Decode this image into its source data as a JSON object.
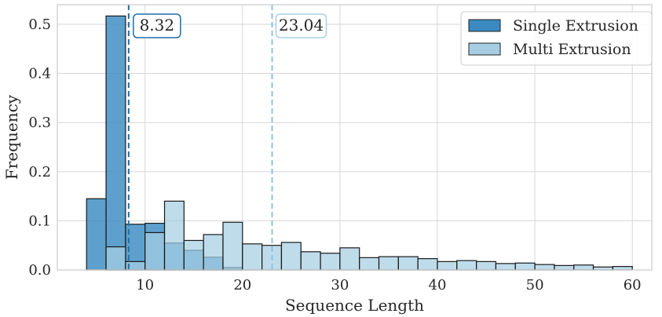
{
  "chart_data": {
    "type": "bar",
    "subtype": "histogram",
    "xlabel": "Sequence Length",
    "ylabel": "Frequency",
    "xlim": [
      1,
      62
    ],
    "ylim": [
      0,
      0.54
    ],
    "xticks": [
      10,
      20,
      30,
      40,
      50,
      60
    ],
    "yticks": [
      0.0,
      0.1,
      0.2,
      0.3,
      0.4,
      0.5
    ],
    "xtick_labels": [
      "10",
      "20",
      "30",
      "40",
      "50",
      "60"
    ],
    "ytick_labels": [
      "0.0",
      "0.1",
      "0.2",
      "0.3",
      "0.4",
      "0.5"
    ],
    "grid": true,
    "legend_position": "top-right",
    "series": [
      {
        "name": "Single Extrusion",
        "color": "#3b8bc2",
        "bin_width": 2,
        "bin_starts": [
          4,
          6,
          8,
          10,
          12,
          14,
          16,
          18
        ],
        "values": [
          0.145,
          0.517,
          0.093,
          0.095,
          0.055,
          0.04,
          0.026,
          0.005
        ]
      },
      {
        "name": "Multi Extrusion",
        "color": "#a6cee3",
        "bin_width": 2,
        "bin_starts": [
          6,
          8,
          10,
          12,
          14,
          16,
          18,
          20,
          22,
          24,
          26,
          28,
          30,
          32,
          34,
          36,
          38,
          40,
          42,
          44,
          46,
          48,
          50,
          52,
          54,
          56,
          58
        ],
        "values": [
          0.047,
          0.017,
          0.076,
          0.14,
          0.06,
          0.072,
          0.097,
          0.053,
          0.05,
          0.056,
          0.037,
          0.034,
          0.045,
          0.025,
          0.027,
          0.027,
          0.023,
          0.017,
          0.019,
          0.017,
          0.013,
          0.014,
          0.011,
          0.009,
          0.01,
          0.006,
          0.007
        ]
      }
    ],
    "annotations": [
      {
        "text": "8.32",
        "x": 8.32,
        "color": "#1f6fa8",
        "box_color": "#1f6fa8"
      },
      {
        "text": "23.04",
        "x": 23.04,
        "color": "#8fc2dd",
        "box_color": "#a9d0e6"
      }
    ]
  }
}
